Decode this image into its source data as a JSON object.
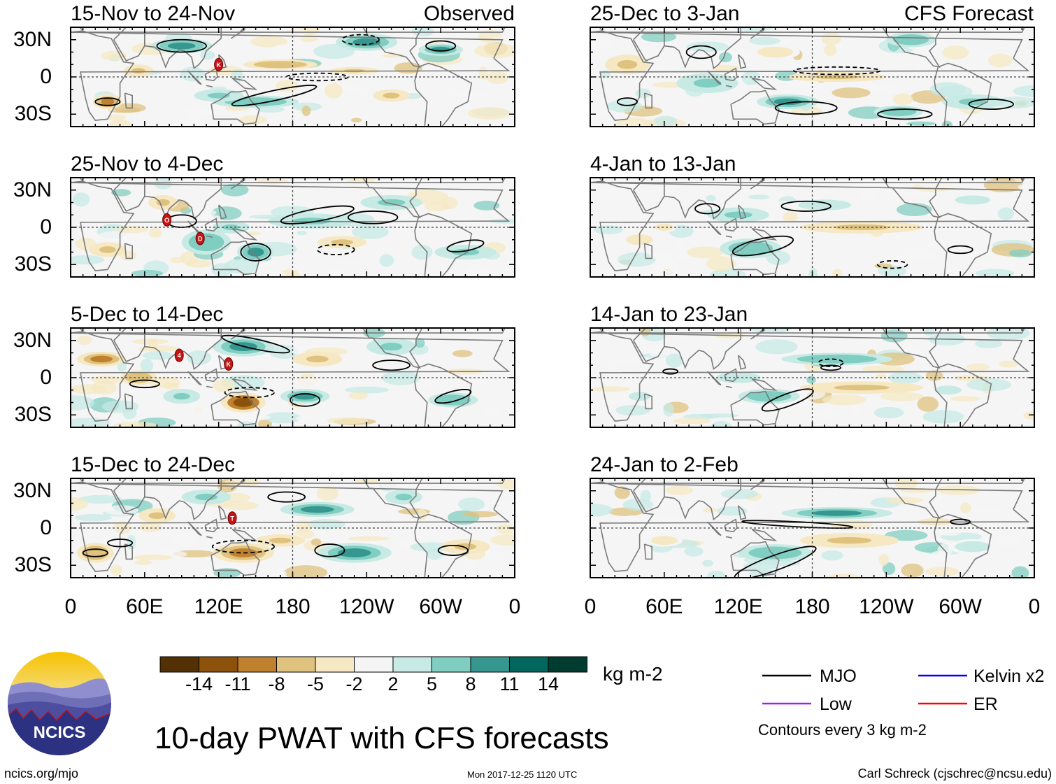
{
  "figure": {
    "title": "10-day PWAT with CFS forecasts",
    "left_column_tag": "Observed",
    "right_column_tag": "CFS Forecast",
    "footer_left": "ncics.org/mjo",
    "footer_center": "Mon 2017-12-25 1120 UTC",
    "footer_right": "Carl Schreck (cjschrec@ncsu.edu)",
    "logo_text": "NCICS"
  },
  "chart_data": {
    "type": "heatmap",
    "variable": "Precipitable water (PWAT) anomaly",
    "units": "kg m-2",
    "x_ticks": [
      "0",
      "60E",
      "120E",
      "180",
      "120W",
      "60W",
      "0"
    ],
    "y_ticks": [
      "30N",
      "0",
      "30S"
    ],
    "panels": [
      {
        "period": "15-Nov to 24-Nov",
        "source": "Observed",
        "markers": [
          {
            "label": "K",
            "lon": 120,
            "lat": 10
          }
        ]
      },
      {
        "period": "25-Nov to 4-Dec",
        "source": "Observed",
        "markers": [
          {
            "label": "O",
            "lon": 78,
            "lat": 6
          },
          {
            "label": "D",
            "lon": 105,
            "lat": -9
          }
        ]
      },
      {
        "period": "5-Dec to 14-Dec",
        "source": "Observed",
        "markers": [
          {
            "label": "4",
            "lon": 88,
            "lat": 18
          },
          {
            "label": "K",
            "lon": 128,
            "lat": 11
          }
        ]
      },
      {
        "period": "15-Dec to 24-Dec",
        "source": "Observed",
        "markers": [
          {
            "label": "T",
            "lon": 131,
            "lat": 8
          }
        ]
      },
      {
        "period": "25-Dec to 3-Jan",
        "source": "CFS Forecast",
        "markers": []
      },
      {
        "period": "4-Jan to 13-Jan",
        "source": "CFS Forecast",
        "markers": []
      },
      {
        "period": "14-Jan to 23-Jan",
        "source": "CFS Forecast",
        "markers": []
      },
      {
        "period": "24-Jan to 2-Feb",
        "source": "CFS Forecast",
        "markers": []
      }
    ],
    "colorbar": {
      "labels": [
        "-14",
        "-11",
        "-8",
        "-5",
        "-2",
        "2",
        "5",
        "8",
        "11",
        "14"
      ],
      "colors": [
        "#543005",
        "#8c510a",
        "#bf812d",
        "#dfc27d",
        "#f6e8c3",
        "#f5f5f5",
        "#c7eae5",
        "#80cdc1",
        "#35978f",
        "#01665e",
        "#003c30"
      ],
      "units_label": "kg m-2"
    },
    "contour_legend": [
      {
        "name": "MJO",
        "color": "#000000"
      },
      {
        "name": "Kelvin x2",
        "color": "#0000ff"
      },
      {
        "name": "Low",
        "color": "#a020f0"
      },
      {
        "name": "ER",
        "color": "#ff0000"
      }
    ],
    "contour_note": "Contours every 3 kg m-2"
  }
}
